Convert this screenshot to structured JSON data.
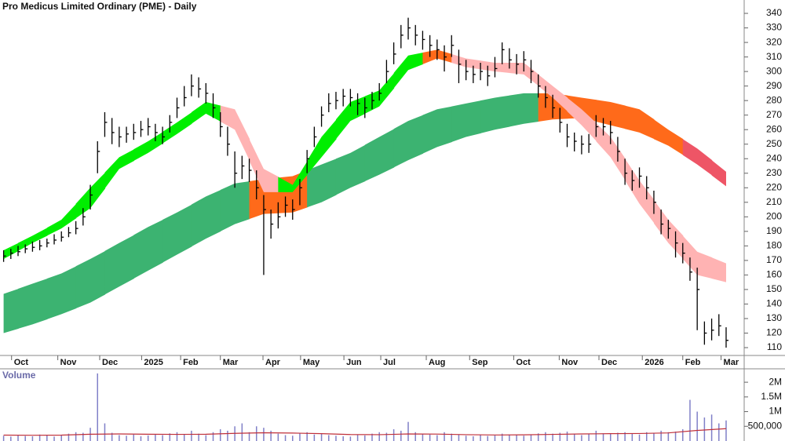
{
  "chart_data": {
    "type": "ohlc",
    "title": "Pro Medicus Limited Ordinary (PME) - Daily",
    "color": "#000000",
    "xlim": [
      -0.5,
      102.5
    ],
    "xticks": [
      {
        "value": 1.1,
        "label": "Oct"
      },
      {
        "value": 7.5,
        "label": "Nov"
      },
      {
        "value": 13.3,
        "label": "Dec"
      },
      {
        "value": 19.1,
        "label": "2025"
      },
      {
        "value": 24.5,
        "label": "Feb"
      },
      {
        "value": 30.0,
        "label": "Mar"
      },
      {
        "value": 35.9,
        "label": "Apr"
      },
      {
        "value": 41.1,
        "label": "May"
      },
      {
        "value": 47.1,
        "label": "Jun"
      },
      {
        "value": 52.2,
        "label": "Jul"
      },
      {
        "value": 58.5,
        "label": "Aug"
      },
      {
        "value": 64.5,
        "label": "Sep"
      },
      {
        "value": 70.6,
        "label": "Oct"
      },
      {
        "value": 76.9,
        "label": "Nov"
      },
      {
        "value": 82.4,
        "label": "Dec"
      },
      {
        "value": 88.4,
        "label": "2026"
      },
      {
        "value": 94.0,
        "label": "Feb"
      },
      {
        "value": 99.3,
        "label": "Mar"
      }
    ],
    "ylim": [
      104.6,
      349.2
    ],
    "yticks": [
      110,
      120,
      130,
      140,
      150,
      160,
      170,
      180,
      190,
      200,
      210,
      220,
      230,
      240,
      250,
      260,
      270,
      280,
      290,
      300,
      310,
      320,
      330,
      340
    ],
    "high": [
      177,
      178,
      180,
      181,
      183,
      184,
      185,
      188,
      190,
      193,
      197,
      206,
      222,
      252,
      272,
      268,
      262,
      262,
      264,
      266,
      268,
      264,
      262,
      270,
      282,
      290,
      298,
      296,
      292,
      285,
      272,
      262,
      245,
      242,
      240,
      232,
      215,
      205,
      210,
      214,
      212,
      226,
      246,
      262,
      276,
      285,
      286,
      288,
      288,
      285,
      282,
      286,
      292,
      308,
      320,
      332,
      337,
      332,
      328,
      325,
      322,
      318,
      325,
      315,
      308,
      304,
      306,
      304,
      310,
      320,
      316,
      312,
      314,
      308,
      298,
      290,
      284,
      275,
      264,
      258,
      256,
      257,
      270,
      268,
      266,
      255,
      240,
      232,
      234,
      228,
      218,
      205,
      198,
      190,
      182,
      172,
      165,
      128,
      130,
      133,
      124
    ],
    "low": [
      169,
      171,
      173,
      175,
      176,
      177,
      179,
      181,
      183,
      186,
      188,
      194,
      205,
      230,
      255,
      250,
      248,
      251,
      253,
      255,
      256,
      252,
      250,
      258,
      268,
      276,
      283,
      282,
      278,
      268,
      255,
      242,
      220,
      226,
      224,
      212,
      160,
      185,
      192,
      200,
      198,
      208,
      230,
      248,
      262,
      272,
      274,
      276,
      276,
      270,
      268,
      274,
      280,
      292,
      305,
      316,
      322,
      318,
      315,
      310,
      308,
      300,
      310,
      292,
      294,
      292,
      294,
      290,
      296,
      305,
      302,
      298,
      300,
      292,
      282,
      275,
      268,
      258,
      248,
      245,
      243,
      244,
      255,
      256,
      250,
      238,
      222,
      218,
      220,
      212,
      202,
      188,
      185,
      172,
      168,
      156,
      122,
      112,
      115,
      118,
      110
    ],
    "close": [
      173,
      175,
      176,
      178,
      179,
      180,
      182,
      184,
      186,
      189,
      192,
      200,
      215,
      245,
      265,
      258,
      255,
      257,
      258,
      260,
      262,
      258,
      255,
      265,
      275,
      282,
      290,
      288,
      285,
      275,
      262,
      250,
      230,
      235,
      232,
      220,
      205,
      195,
      200,
      208,
      205,
      220,
      240,
      255,
      270,
      278,
      280,
      283,
      282,
      278,
      275,
      280,
      285,
      300,
      312,
      325,
      330,
      325,
      322,
      318,
      315,
      310,
      318,
      305,
      300,
      298,
      300,
      297,
      302,
      315,
      308,
      305,
      308,
      300,
      290,
      282,
      275,
      265,
      255,
      252,
      250,
      250,
      262,
      262,
      258,
      245,
      230,
      225,
      228,
      220,
      210,
      195,
      192,
      182,
      175,
      162,
      150,
      120,
      122,
      125,
      115
    ],
    "ribbon_x": [
      0,
      4,
      8,
      12,
      16,
      20,
      24,
      28,
      32,
      36,
      40,
      44,
      48,
      52,
      56,
      60,
      64,
      68,
      72,
      76,
      80,
      84,
      88,
      92,
      96,
      100
    ],
    "fast_ribbon": {
      "upper": [
        177,
        187,
        198,
        220,
        241,
        252,
        265,
        279,
        274,
        233,
        222,
        255,
        279,
        287,
        311,
        315,
        309,
        306,
        306,
        290,
        274,
        255,
        225,
        198,
        176,
        168
      ],
      "lower": [
        171,
        182,
        192,
        206,
        233,
        244,
        257,
        271,
        260,
        217,
        217,
        241,
        266,
        276,
        301,
        309,
        303,
        300,
        298,
        282,
        263,
        241,
        209,
        182,
        160,
        155
      ],
      "colors": [
        "#00ee00",
        "#00ee00",
        "#00ee00",
        "#00ee00",
        "#00ee00",
        "#00ee00",
        "#00ee00",
        "#00ee00",
        "#ffb3b3",
        "#ffb3b3",
        "#00ee00",
        "#00ee00",
        "#00ee00",
        "#00ee00",
        "#00ee00",
        "#ff6a1a",
        "#ffb3b3",
        "#ffb3b3",
        "#ffb3b3",
        "#ffb3b3",
        "#ffb3b3",
        "#ffb3b3",
        "#ffb3b3",
        "#ffb3b3",
        "#ffb3b3",
        "#ffb3b3"
      ]
    },
    "slow_ribbon": {
      "upper": [
        147,
        154,
        161,
        171,
        182,
        193,
        203,
        214,
        223,
        226,
        228,
        236,
        244,
        255,
        266,
        274,
        278,
        282,
        285,
        285,
        282,
        279,
        274,
        260,
        247,
        231
      ],
      "lower": [
        120,
        126,
        133,
        141,
        152,
        163,
        174,
        185,
        195,
        202,
        203,
        210,
        220,
        229,
        239,
        248,
        255,
        260,
        264,
        267,
        268,
        263,
        258,
        249,
        236,
        221
      ],
      "colors": [
        "#3cb371",
        "#3cb371",
        "#3cb371",
        "#3cb371",
        "#3cb371",
        "#3cb371",
        "#3cb371",
        "#3cb371",
        "#3cb371",
        "#ff6a1a",
        "#ff6a1a",
        "#3cb371",
        "#3cb371",
        "#3cb371",
        "#3cb371",
        "#3cb371",
        "#3cb371",
        "#3cb371",
        "#3cb371",
        "#ff6a1a",
        "#ff6a1a",
        "#ff6a1a",
        "#ff6a1a",
        "#ff6a1a",
        "#ee5566",
        "#ee5566"
      ]
    },
    "volume": {
      "label": "Volume",
      "color": "#8080c8",
      "average_color": "#c0303a",
      "ylim": [
        0,
        2350000
      ],
      "yticks": [
        {
          "value": 500000,
          "label": "500,000"
        },
        {
          "value": 1000000,
          "label": "1M"
        },
        {
          "value": 1500000,
          "label": "1.5M"
        },
        {
          "value": 2000000,
          "label": "2M"
        }
      ],
      "values": [
        180000,
        150000,
        200000,
        170000,
        160000,
        220000,
        190000,
        150000,
        210000,
        250000,
        300000,
        280000,
        450000,
        2300000,
        600000,
        280000,
        200000,
        180000,
        220000,
        160000,
        190000,
        240000,
        200000,
        260000,
        300000,
        220000,
        350000,
        250000,
        200000,
        300000,
        400000,
        350000,
        500000,
        600000,
        300000,
        500000,
        450000,
        350000,
        250000,
        200000,
        180000,
        260000,
        300000,
        220000,
        250000,
        200000,
        180000,
        160000,
        150000,
        220000,
        190000,
        250000,
        300000,
        280000,
        400000,
        350000,
        650000,
        300000,
        250000,
        220000,
        200000,
        300000,
        250000,
        220000,
        180000,
        160000,
        200000,
        170000,
        190000,
        250000,
        220000,
        200000,
        180000,
        210000,
        260000,
        300000,
        250000,
        280000,
        320000,
        240000,
        200000,
        230000,
        350000,
        260000,
        240000,
        280000,
        300000,
        250000,
        220000,
        300000,
        280000,
        350000,
        300000,
        320000,
        400000,
        1400000,
        1000000,
        800000,
        900000,
        600000,
        700000
      ],
      "average": [
        200000,
        195000,
        200000,
        230000,
        240000,
        230000,
        225000,
        230000,
        260000,
        280000,
        270000,
        250000,
        220000,
        215000,
        240000,
        235000,
        215000,
        205000,
        210000,
        225000,
        240000,
        250000,
        255000,
        275000,
        360000,
        420000
      ]
    }
  }
}
